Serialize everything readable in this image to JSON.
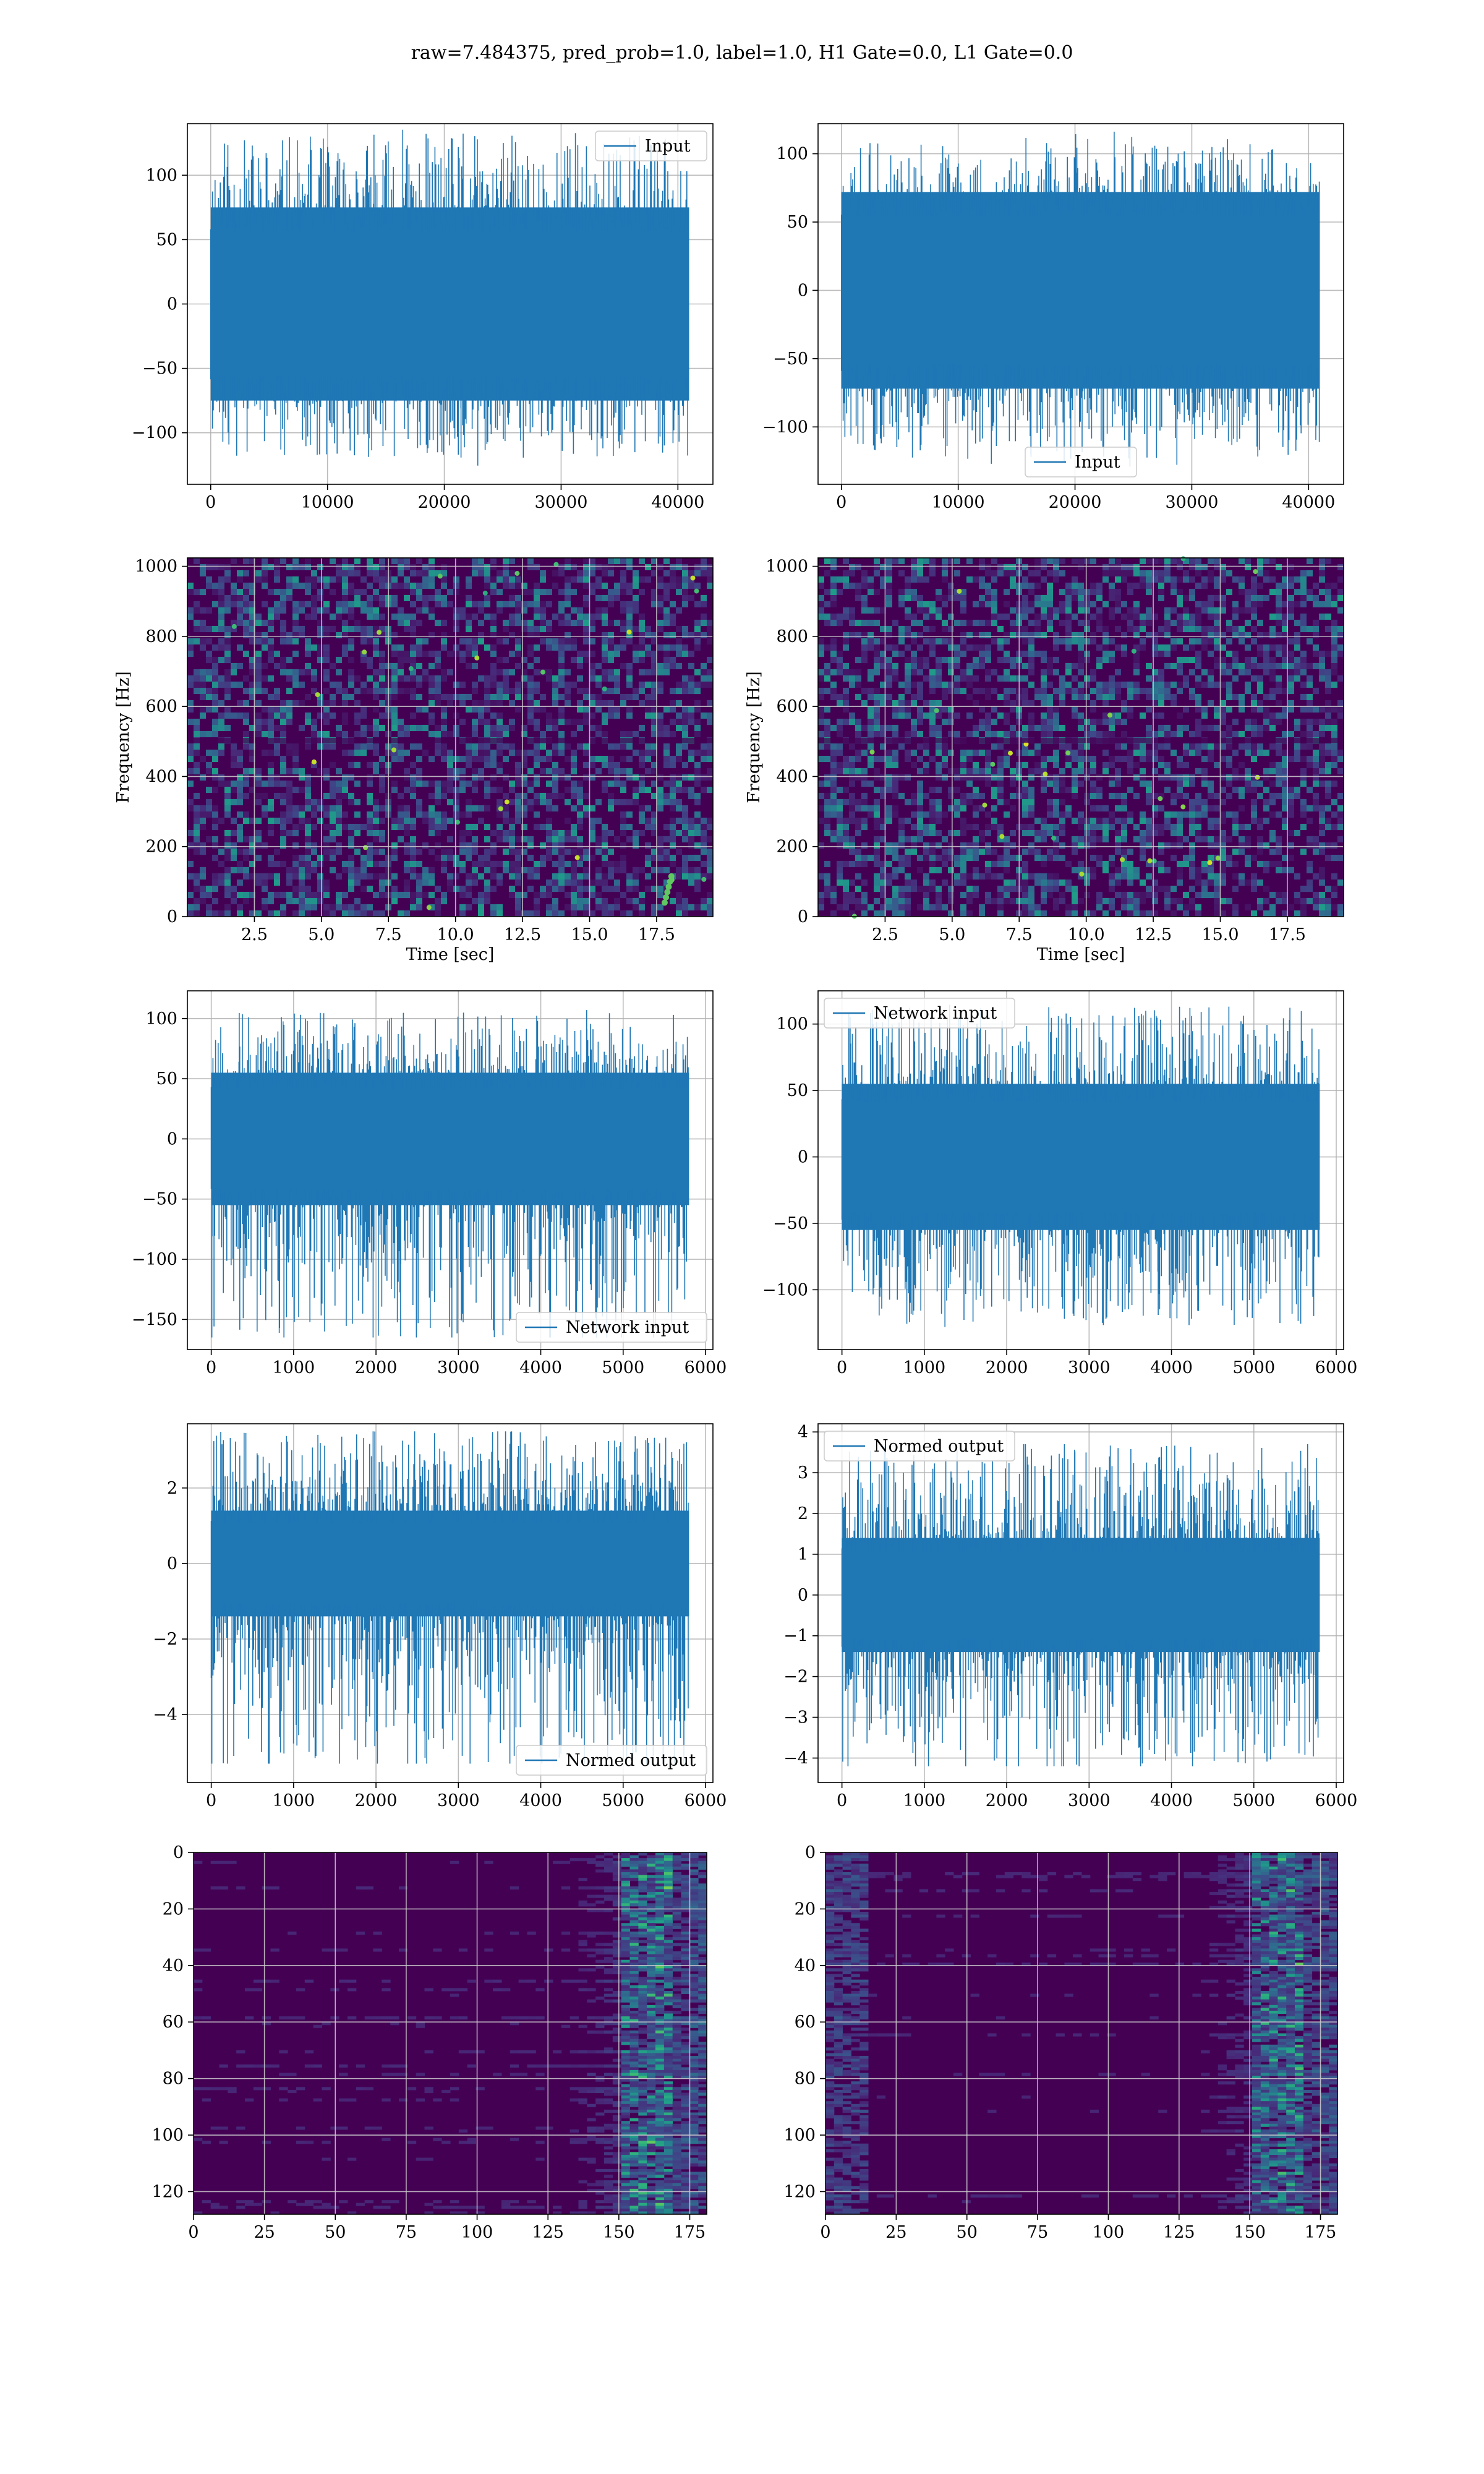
{
  "title": "raw=7.484375, pred_prob=1.0, label=1.0, H1 Gate=0.0, L1 Gate=0.0",
  "colors": {
    "line": "#1f77b4",
    "grid": "#b0b0b0",
    "viridis_dark": "#440154",
    "viridis_mid": "#3b528b",
    "viridis_teal": "#21918c",
    "viridis_green": "#5ec962",
    "viridis_yellow": "#fde725"
  },
  "chart_data": [
    {
      "id": "input-h1",
      "type": "line",
      "legend": "Input",
      "legend_loc": "top-right",
      "x_range": [
        0,
        40960
      ],
      "ylim": [
        -140,
        140
      ],
      "xlim": [
        -2000,
        43000
      ],
      "xticks": [
        0,
        10000,
        20000,
        30000,
        40000
      ],
      "yticks": [
        -100,
        -50,
        0,
        50,
        100
      ],
      "env": {
        "upper": 75,
        "lower": -75,
        "peak_max": 137,
        "peak_min": -127
      },
      "grid": true,
      "xlabel": "",
      "ylabel": ""
    },
    {
      "id": "input-l1",
      "type": "line",
      "legend": "Input",
      "legend_loc": "bottom-center",
      "x_range": [
        0,
        40960
      ],
      "ylim": [
        -142,
        122
      ],
      "xlim": [
        -2000,
        43000
      ],
      "xticks": [
        0,
        10000,
        20000,
        30000,
        40000
      ],
      "yticks": [
        -100,
        -50,
        0,
        50,
        100
      ],
      "env": {
        "upper": 72,
        "lower": -72,
        "peak_max": 117,
        "peak_min": -130
      },
      "grid": true,
      "xlabel": "",
      "ylabel": ""
    },
    {
      "id": "spec-h1",
      "type": "heatmap",
      "xlim": [
        0,
        19.6
      ],
      "ylim": [
        0,
        1024
      ],
      "xticks": [
        2.5,
        5.0,
        7.5,
        10.0,
        12.5,
        15.0,
        17.5
      ],
      "yticks": [
        0,
        200,
        400,
        600,
        800,
        1000
      ],
      "xlabel": "Time [sec]",
      "ylabel": "Frequency [Hz]",
      "grid": true
    },
    {
      "id": "spec-l1",
      "type": "heatmap",
      "xlim": [
        0,
        19.6
      ],
      "ylim": [
        0,
        1024
      ],
      "xticks": [
        2.5,
        5.0,
        7.5,
        10.0,
        12.5,
        15.0,
        17.5
      ],
      "yticks": [
        0,
        200,
        400,
        600,
        800,
        1000
      ],
      "xlabel": "Time [sec]",
      "ylabel": "Frequency [Hz]",
      "grid": true
    },
    {
      "id": "net-h1",
      "type": "line",
      "legend": "Network input",
      "legend_loc": "bottom-right",
      "x_range": [
        0,
        5800
      ],
      "ylim": [
        -175,
        123
      ],
      "xlim": [
        -290,
        6090
      ],
      "xticks": [
        0,
        1000,
        2000,
        3000,
        4000,
        5000,
        6000
      ],
      "yticks": [
        -150,
        -100,
        -50,
        0,
        50,
        100
      ],
      "env": {
        "upper": 55,
        "lower": -55,
        "peak_max": 108,
        "peak_min": -165
      },
      "grid": true,
      "xlabel": "",
      "ylabel": ""
    },
    {
      "id": "net-l1",
      "type": "line",
      "legend": "Network input",
      "legend_loc": "top-left",
      "x_range": [
        0,
        5800
      ],
      "ylim": [
        -145,
        125
      ],
      "xlim": [
        -290,
        6090
      ],
      "xticks": [
        0,
        1000,
        2000,
        3000,
        4000,
        5000,
        6000
      ],
      "yticks": [
        -100,
        -50,
        0,
        50,
        100
      ],
      "env": {
        "upper": 55,
        "lower": -55,
        "peak_max": 115,
        "peak_min": -128
      },
      "grid": true,
      "xlabel": "",
      "ylabel": ""
    },
    {
      "id": "norm-h1",
      "type": "line",
      "legend": "Normed output",
      "legend_loc": "bottom-right",
      "x_range": [
        0,
        5800
      ],
      "ylim": [
        -5.8,
        3.7
      ],
      "xlim": [
        -290,
        6090
      ],
      "xticks": [
        0,
        1000,
        2000,
        3000,
        4000,
        5000,
        6000
      ],
      "yticks": [
        -4,
        -2,
        0,
        2
      ],
      "env": {
        "upper": 1.4,
        "lower": -1.4,
        "peak_max": 3.5,
        "peak_min": -5.3
      },
      "grid": true,
      "xlabel": "",
      "ylabel": ""
    },
    {
      "id": "norm-l1",
      "type": "line",
      "legend": "Normed output",
      "legend_loc": "top-left",
      "x_range": [
        0,
        5800
      ],
      "ylim": [
        -4.6,
        4.2
      ],
      "xlim": [
        -290,
        6090
      ],
      "xticks": [
        0,
        1000,
        2000,
        3000,
        4000,
        5000,
        6000
      ],
      "yticks": [
        -4,
        -3,
        -2,
        -1,
        0,
        1,
        2,
        3,
        4
      ],
      "env": {
        "upper": 1.4,
        "lower": -1.4,
        "peak_max": 3.7,
        "peak_min": -4.2
      },
      "grid": true,
      "xlabel": "",
      "ylabel": ""
    },
    {
      "id": "feat-h1",
      "type": "heatmap",
      "xlim": [
        0,
        181
      ],
      "ylim": [
        128,
        0
      ],
      "xticks": [
        0,
        25,
        50,
        75,
        100,
        125,
        150,
        175
      ],
      "yticks": [
        0,
        20,
        40,
        60,
        80,
        100,
        120
      ],
      "grid": true,
      "xlabel": "",
      "ylabel": ""
    },
    {
      "id": "feat-l1",
      "type": "heatmap",
      "xlim": [
        0,
        181
      ],
      "ylim": [
        128,
        0
      ],
      "xticks": [
        0,
        25,
        50,
        75,
        100,
        125,
        150,
        175
      ],
      "yticks": [
        0,
        20,
        40,
        60,
        80,
        100,
        120
      ],
      "grid": true,
      "xlabel": "",
      "ylabel": ""
    }
  ]
}
